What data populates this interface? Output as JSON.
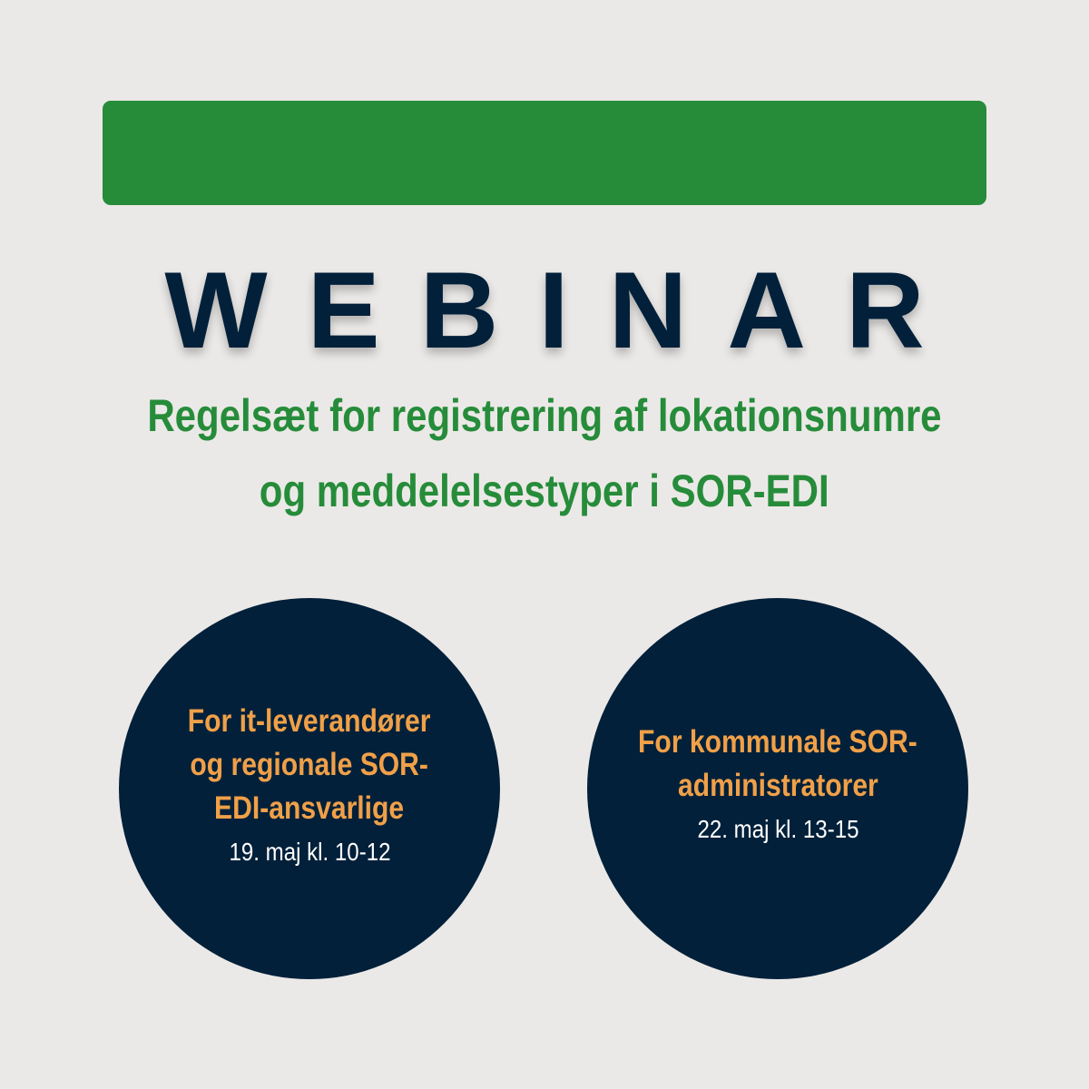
{
  "colors": {
    "background": "#ebe9e7",
    "green": "#268c3a",
    "navy": "#02203a",
    "orange": "#f0a048"
  },
  "title": "WEBINAR",
  "subtitle": [
    "Regelsæt for registrering af lokationsnumre",
    "og meddelelsestyper i SOR-EDI"
  ],
  "sessions": [
    {
      "audience": [
        "For it-leverandører",
        "og regionale SOR-",
        "EDI-ansvarlige"
      ],
      "date": "19. maj kl. 10-12"
    },
    {
      "audience": [
        "For kommunale SOR-",
        "administratorer"
      ],
      "date": "22. maj kl. 13-15"
    }
  ]
}
